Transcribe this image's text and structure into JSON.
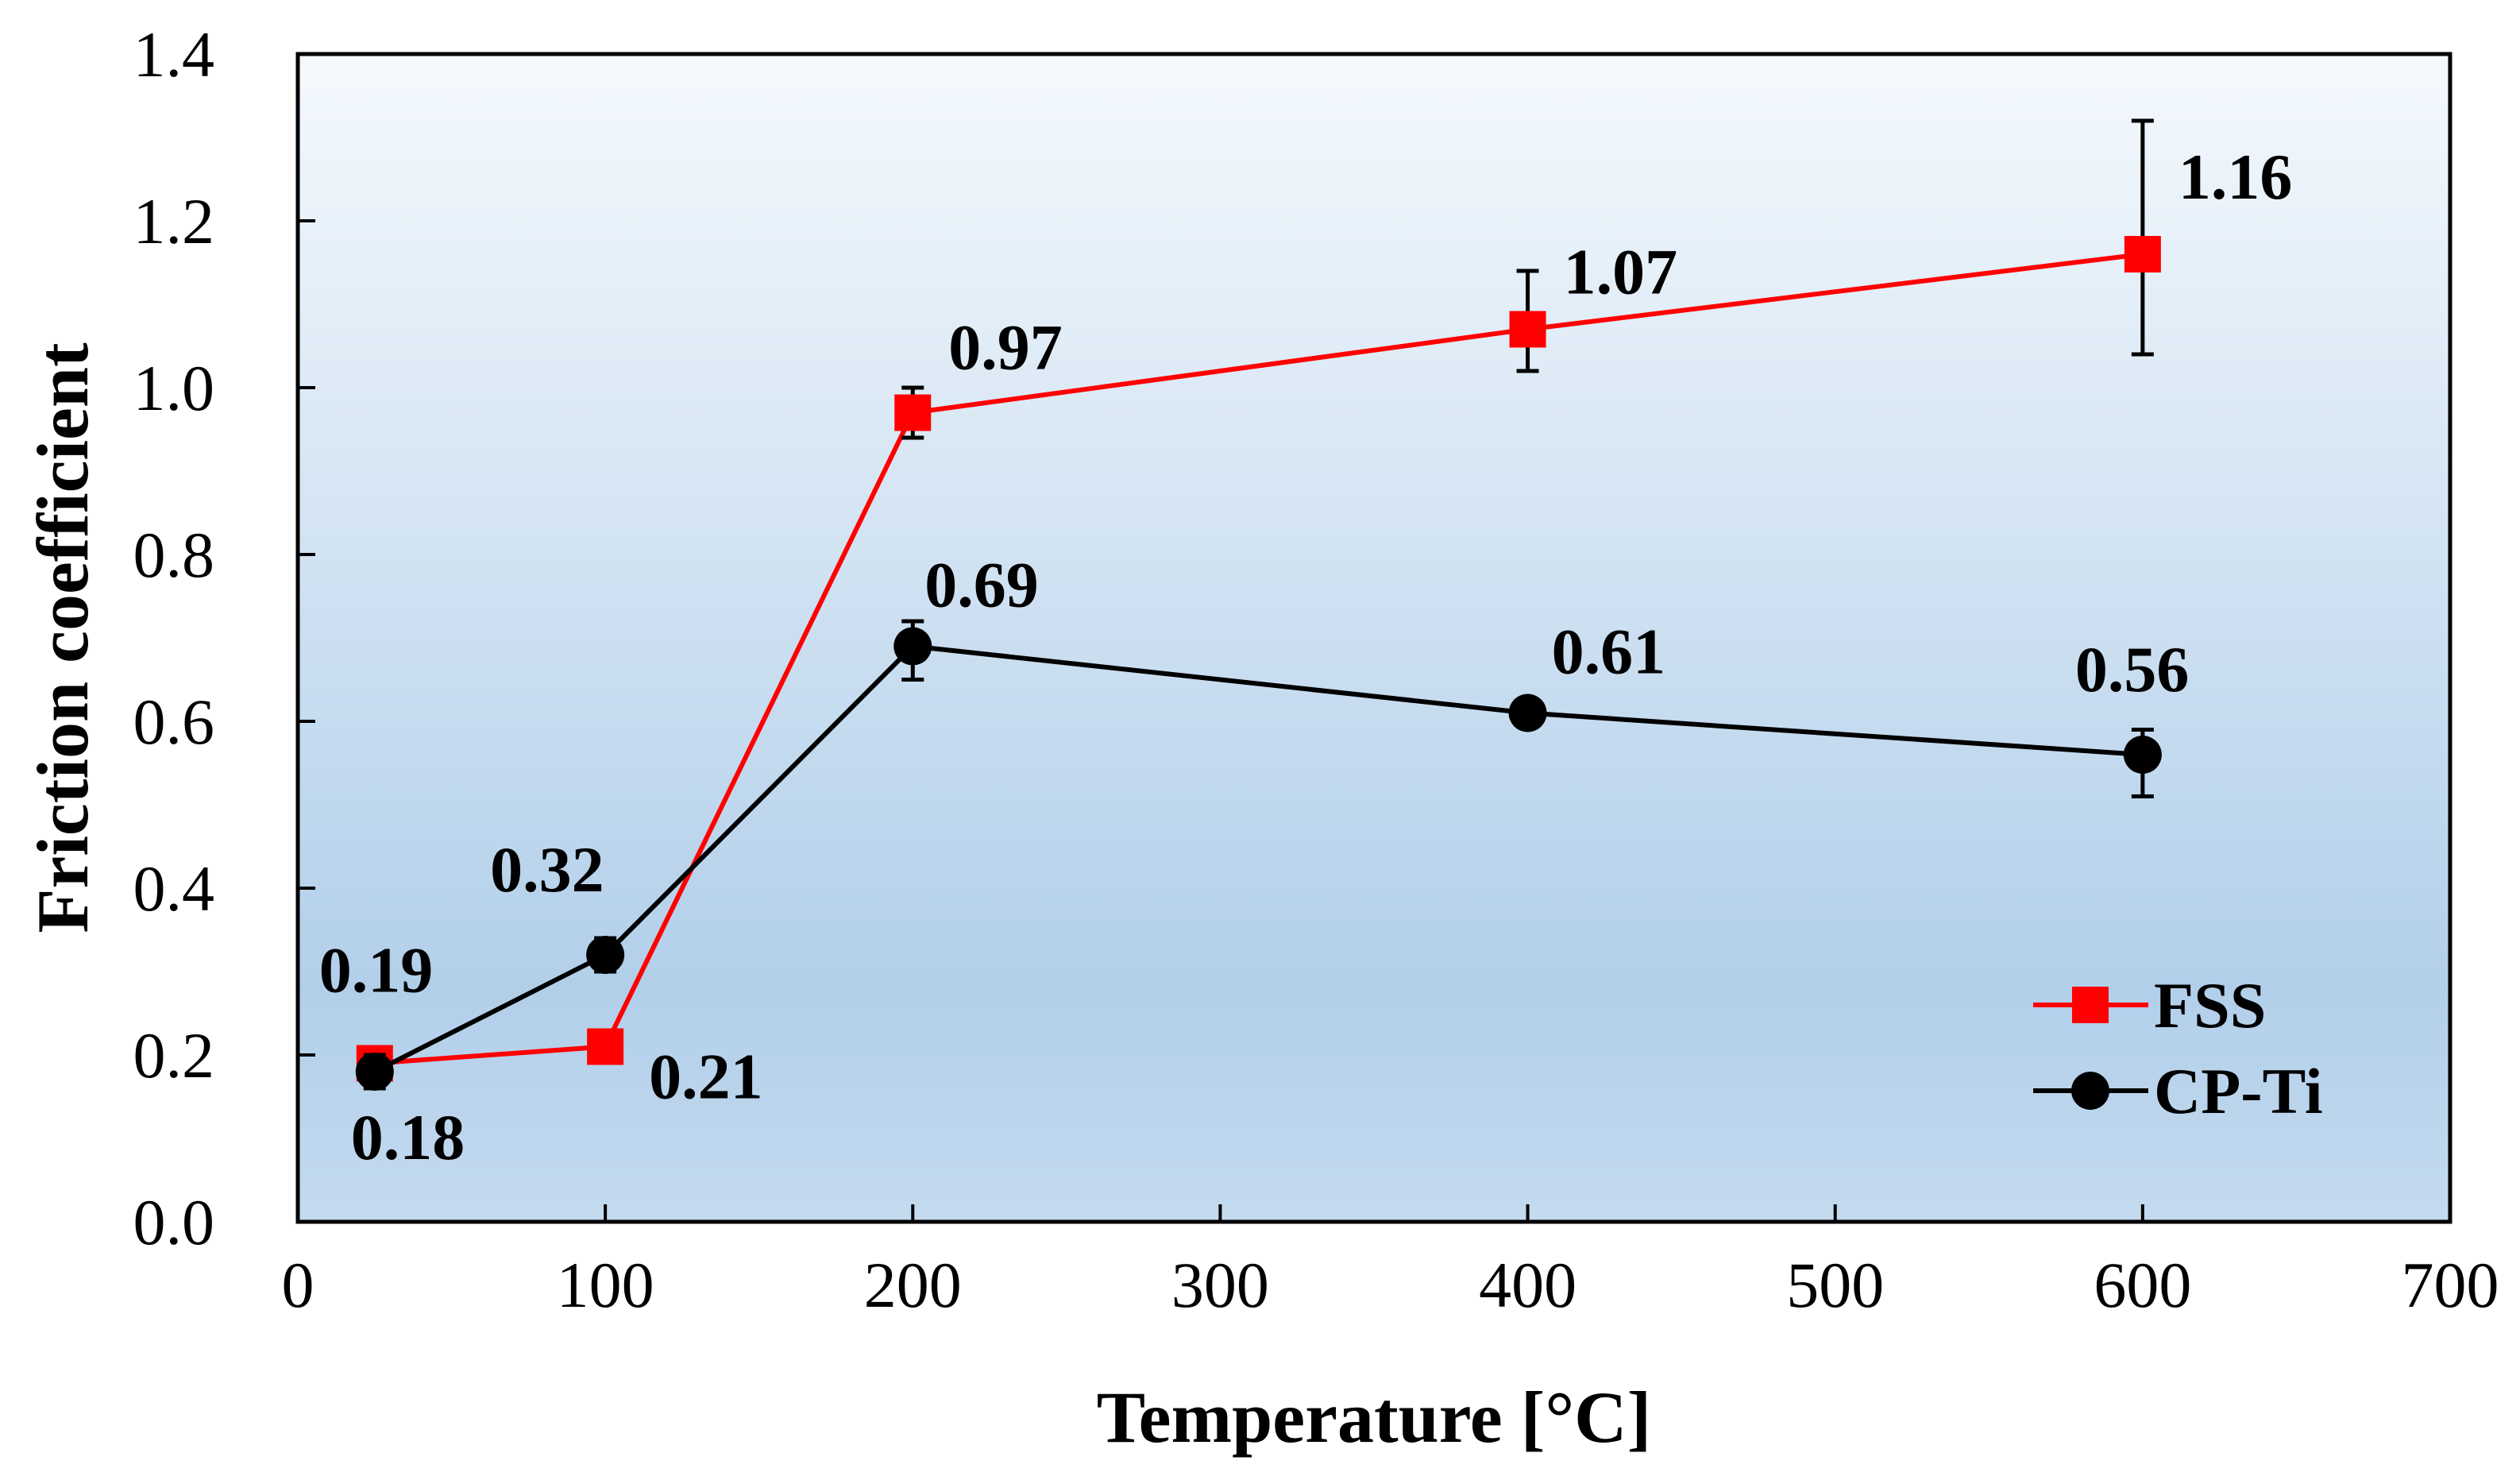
{
  "chart_data": {
    "type": "line",
    "title": "",
    "xlabel": "Temperature [°C]",
    "ylabel": "Friction coefficient",
    "xlim": [
      0,
      700
    ],
    "ylim": [
      0,
      1.4
    ],
    "x_ticks": [
      "0",
      "100",
      "200",
      "300",
      "400",
      "500",
      "600",
      "700"
    ],
    "y_ticks": [
      "0.0",
      "0.2",
      "0.4",
      "0.6",
      "0.8",
      "1.0",
      "1.2",
      "1.4"
    ],
    "grid": false,
    "legend_position": "bottom-right",
    "background": "blue-white vertical gradient",
    "series": [
      {
        "name": "FSS",
        "color": "#ff0000",
        "marker": "square",
        "x": [
          25,
          100,
          200,
          400,
          600
        ],
        "y": [
          0.19,
          0.21,
          0.97,
          1.07,
          1.16
        ],
        "error_low": [
          0.17,
          0.2,
          0.94,
          1.02,
          1.04
        ],
        "error_high": [
          0.2,
          0.22,
          1.0,
          1.14,
          1.32
        ],
        "labels": [
          "0.19",
          "0.21",
          "0.97",
          "1.07",
          "1.16"
        ]
      },
      {
        "name": "CP-Ti",
        "color": "#000000",
        "marker": "circle",
        "x": [
          25,
          100,
          200,
          400,
          600
        ],
        "y": [
          0.18,
          0.32,
          0.69,
          0.61,
          0.56
        ],
        "error_low": [
          0.16,
          0.3,
          0.65,
          0.6,
          0.51
        ],
        "error_high": [
          0.2,
          0.34,
          0.72,
          0.62,
          0.59
        ],
        "labels": [
          "0.18",
          "0.32",
          "0.69",
          "0.61",
          "0.56"
        ]
      }
    ]
  }
}
